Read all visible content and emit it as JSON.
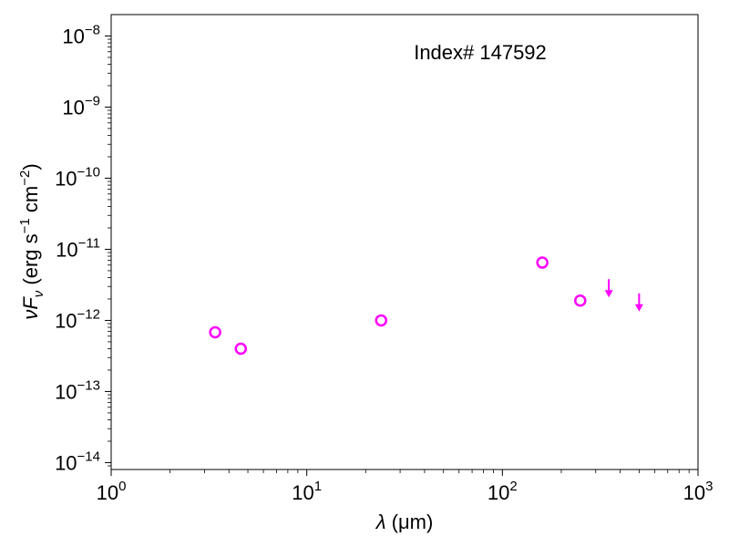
{
  "chart_data": {
    "type": "scatter",
    "annotation": "Index# 147592",
    "xlabel": {
      "sym": "λ",
      "unit": " (μm)"
    },
    "ylabel": {
      "sym": "νF",
      "sub": "ν",
      "unit_pre": " (erg s",
      "exp1": "−1",
      "unit_mid": " cm",
      "exp2": "−2",
      "unit_post": ")"
    },
    "xscale": "log",
    "yscale": "log",
    "xlim": [
      1,
      1000
    ],
    "ylim": [
      8e-15,
      2e-08
    ],
    "grid": false,
    "x_ticks": [
      {
        "base": "10",
        "exp": "0",
        "value": 1
      },
      {
        "base": "10",
        "exp": "1",
        "value": 10
      },
      {
        "base": "10",
        "exp": "2",
        "value": 100
      },
      {
        "base": "10",
        "exp": "3",
        "value": 1000
      }
    ],
    "y_ticks": [
      {
        "base": "10",
        "exp": "−14",
        "value": 1e-14
      },
      {
        "base": "10",
        "exp": "−13",
        "value": 1e-13
      },
      {
        "base": "10",
        "exp": "−12",
        "value": 1e-12
      },
      {
        "base": "10",
        "exp": "−11",
        "value": 1e-11
      },
      {
        "base": "10",
        "exp": "−10",
        "value": 1e-10
      },
      {
        "base": "10",
        "exp": "−9",
        "value": 1e-09
      },
      {
        "base": "10",
        "exp": "−8",
        "value": 1e-08
      }
    ],
    "marker_color": "#ff00ff",
    "detections": [
      {
        "x": 3.4,
        "y": 6.8e-13
      },
      {
        "x": 4.6,
        "y": 4e-13
      },
      {
        "x": 24,
        "y": 1e-12
      },
      {
        "x": 160,
        "y": 6.5e-12
      },
      {
        "x": 250,
        "y": 1.9e-12
      }
    ],
    "upper_limits": [
      {
        "x": 350,
        "y": 3.8e-12
      },
      {
        "x": 500,
        "y": 2.4e-12
      }
    ]
  }
}
